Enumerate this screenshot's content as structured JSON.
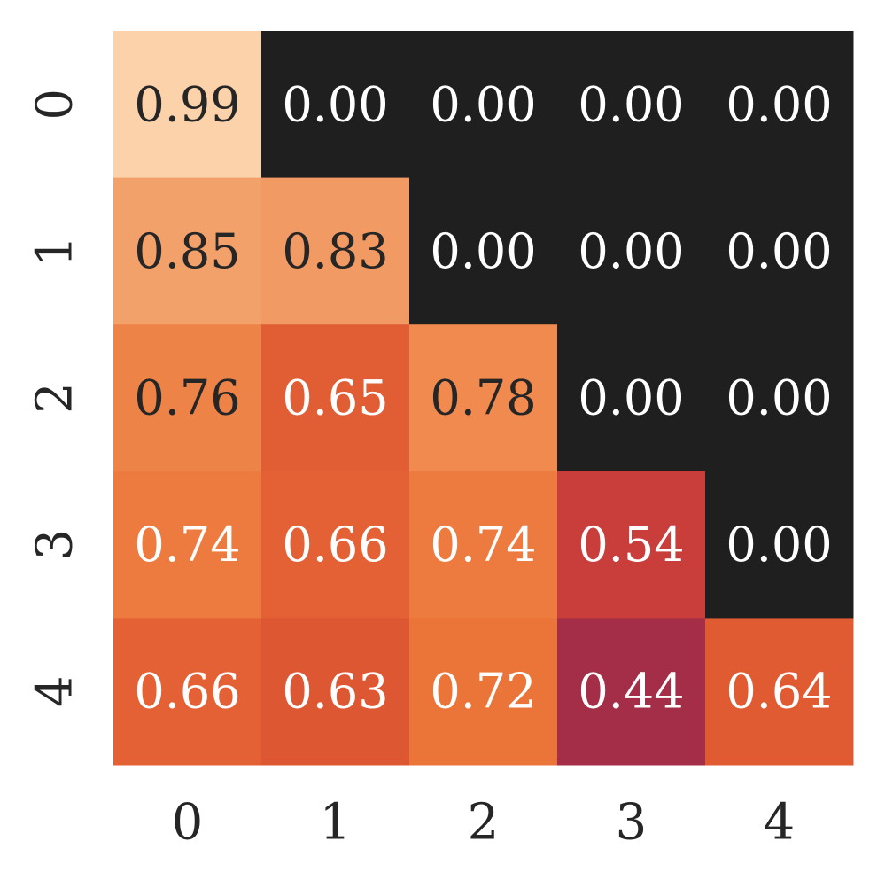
{
  "chart_data": {
    "type": "heatmap",
    "title": "",
    "xlabel": "",
    "ylabel": "",
    "x_labels": [
      "0",
      "1",
      "2",
      "3",
      "4"
    ],
    "y_labels": [
      "0",
      "1",
      "2",
      "3",
      "4"
    ],
    "values": [
      [
        0.99,
        0.0,
        0.0,
        0.0,
        0.0
      ],
      [
        0.85,
        0.83,
        0.0,
        0.0,
        0.0
      ],
      [
        0.76,
        0.65,
        0.78,
        0.0,
        0.0
      ],
      [
        0.74,
        0.66,
        0.74,
        0.54,
        0.0
      ],
      [
        0.66,
        0.63,
        0.72,
        0.44,
        0.64
      ]
    ],
    "value_format": "0.00",
    "colorbar": false,
    "colormap": "rocket",
    "color_anchors": [
      {
        "value": 0.0,
        "color": "#1f1f1f"
      },
      {
        "value": 0.44,
        "color": "#a42d47"
      },
      {
        "value": 0.54,
        "color": "#c93d3a"
      },
      {
        "value": 0.64,
        "color": "#e05a32"
      },
      {
        "value": 0.72,
        "color": "#eb7438"
      },
      {
        "value": 0.78,
        "color": "#f08a4e"
      },
      {
        "value": 0.85,
        "color": "#f3a16b"
      },
      {
        "value": 0.99,
        "color": "#fcd2ab"
      }
    ],
    "label_colors": {
      "light": "#ffffff",
      "dark": "#262626"
    }
  }
}
